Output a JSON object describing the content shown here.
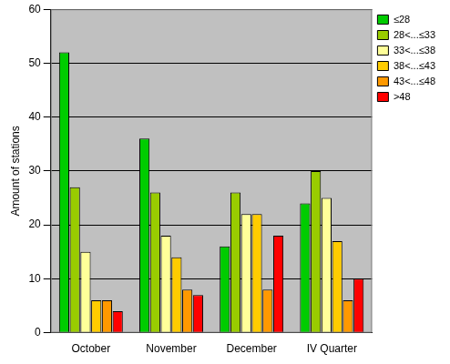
{
  "chart_data": {
    "type": "bar",
    "y_label": "Amount of stations",
    "categories": [
      "October",
      "November",
      "December",
      "IV Quarter"
    ],
    "series": [
      {
        "name": "≤28",
        "color": "#00cc00",
        "values": [
          52,
          36,
          16,
          24
        ]
      },
      {
        "name": "28<...≤33",
        "color": "#99cc00",
        "values": [
          27,
          26,
          26,
          30
        ]
      },
      {
        "name": "33<...≤38",
        "color": "#ffff99",
        "values": [
          15,
          18,
          22,
          25
        ]
      },
      {
        "name": "38<...≤43",
        "color": "#ffcc00",
        "values": [
          6,
          14,
          22,
          17
        ]
      },
      {
        "name": "43<...≤48",
        "color": "#ff9900",
        "values": [
          6,
          8,
          8,
          6
        ]
      },
      {
        "name": ">48",
        "color": "#ff0000",
        "values": [
          4,
          7,
          18,
          10
        ]
      }
    ],
    "ylim": [
      0,
      60
    ],
    "yticks": [
      0,
      10,
      20,
      30,
      40,
      50,
      60
    ],
    "grid": true,
    "legend": "top-right"
  }
}
